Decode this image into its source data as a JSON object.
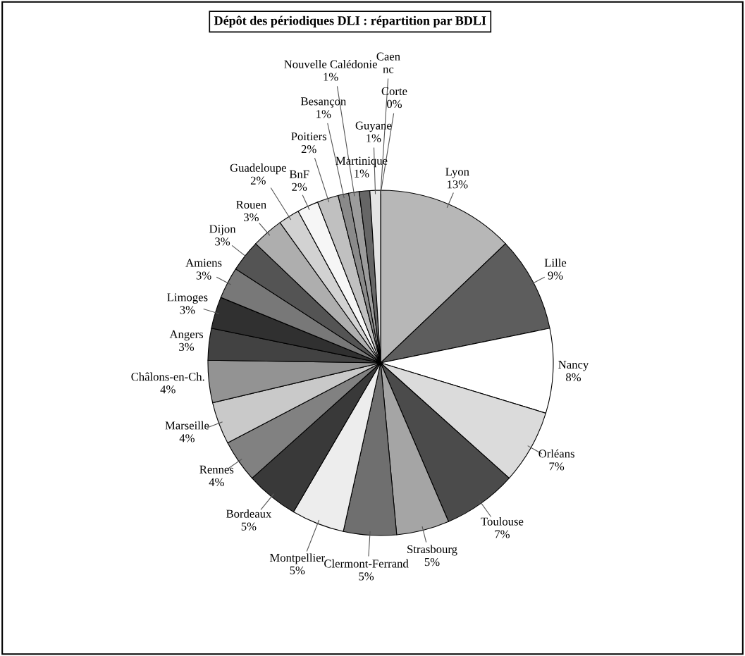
{
  "chart_data": {
    "type": "pie",
    "title": "Dépôt des périodiques DLI : répartition par BDLI",
    "categories": [
      "Lyon",
      "Lille",
      "Nancy",
      "Orléans",
      "Toulouse",
      "Strasbourg",
      "Clermont-Ferrand",
      "Montpellier",
      "Bordeaux",
      "Rennes",
      "Marseille",
      "Châlons-en-Ch.",
      "Angers",
      "Limoges",
      "Amiens",
      "Dijon",
      "Rouen",
      "Guadeloupe",
      "BnF",
      "Poitiers",
      "Besançon",
      "Nouvelle Calédonie",
      "Martinique",
      "Guyane",
      "Corte",
      "Caen"
    ],
    "values": [
      13,
      9,
      8,
      7,
      7,
      5,
      5,
      5,
      5,
      4,
      4,
      4,
      3,
      3,
      3,
      3,
      3,
      2,
      2,
      2,
      1,
      1,
      1,
      1,
      0,
      null
    ],
    "value_labels": [
      "13%",
      "9%",
      "8%",
      "7%",
      "7%",
      "5%",
      "5%",
      "5%",
      "5%",
      "4%",
      "4%",
      "4%",
      "3%",
      "3%",
      "3%",
      "3%",
      "3%",
      "2%",
      "2%",
      "2%",
      "1%",
      "1%",
      "1%",
      "1%",
      "0%",
      "nc"
    ],
    "colors": [
      "#b7b7b7",
      "#5d5d5d",
      "#ffffff",
      "#dbdbdb",
      "#4b4b4b",
      "#a5a5a5",
      "#6f6f6f",
      "#ededed",
      "#393939",
      "#818181",
      "#c9c9c9",
      "#939393",
      "#424242",
      "#303030",
      "#787878",
      "#545454",
      "#aeaeae",
      "#d2d2d2",
      "#f6f6f6",
      "#c0c0c0",
      "#8a8a8a",
      "#9c9c9c",
      "#666666",
      "#e4e4e4",
      "#ebebeb",
      null
    ]
  }
}
